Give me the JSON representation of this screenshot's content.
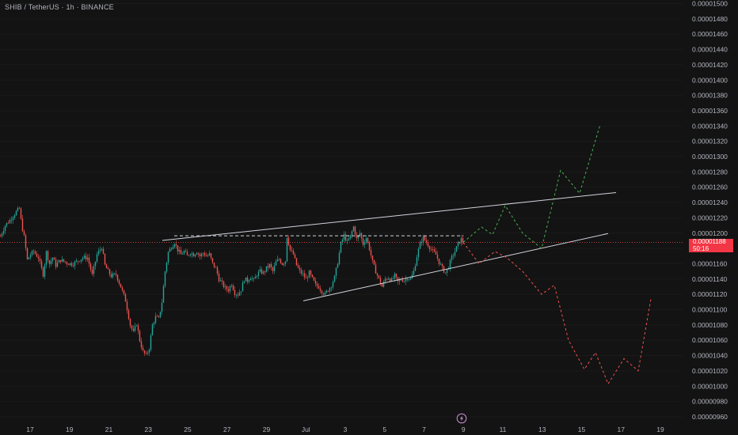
{
  "title": "SHIB / TetherUS · 1h · BINANCE",
  "last_price_tag": {
    "price": "0.00001188",
    "countdown": "50:16",
    "color": "#f23645"
  },
  "colors": {
    "up": "#26a69a",
    "down": "#ef5350",
    "background": "#131313",
    "text": "#b2b5be",
    "trendline": "#d1d4dc",
    "projection_up": "#4caf50",
    "projection_down": "#ef5350"
  },
  "icons": [
    "lightning-icon"
  ],
  "chart_data": {
    "type": "candlestick",
    "y_axis_position": "right",
    "ylim": [
      9.5e-06,
      1.5e-05
    ],
    "y_ticks": [
      "0.00001500",
      "0.00001480",
      "0.00001460",
      "0.00001440",
      "0.00001420",
      "0.00001400",
      "0.00001380",
      "0.00001360",
      "0.00001340",
      "0.00001320",
      "0.00001300",
      "0.00001280",
      "0.00001260",
      "0.00001240",
      "0.00001220",
      "0.00001200",
      "0.00001180",
      "0.00001160",
      "0.00001140",
      "0.00001120",
      "0.00001100",
      "0.00001080",
      "0.00001060",
      "0.00001040",
      "0.00001020",
      "0.00001000",
      "0.00000980",
      "0.00000960"
    ],
    "x_ticks": [
      "17",
      "19",
      "21",
      "23",
      "25",
      "27",
      "29",
      "Jul",
      "3",
      "5",
      "7",
      "9",
      "11",
      "13",
      "15",
      "17",
      "19"
    ],
    "last_price": 1.188e-05,
    "price_anchors": [
      [
        0,
        1196
      ],
      [
        6,
        1210
      ],
      [
        12,
        1217
      ],
      [
        20,
        1228
      ],
      [
        24,
        1232
      ],
      [
        27,
        1210
      ],
      [
        30,
        1195
      ],
      [
        34,
        1165
      ],
      [
        38,
        1172
      ],
      [
        42,
        1176
      ],
      [
        48,
        1168
      ],
      [
        54,
        1146
      ],
      [
        58,
        1175
      ],
      [
        62,
        1160
      ],
      [
        66,
        1168
      ],
      [
        70,
        1158
      ],
      [
        76,
        1165
      ],
      [
        82,
        1162
      ],
      [
        88,
        1160
      ],
      [
        92,
        1160
      ],
      [
        98,
        1164
      ],
      [
        104,
        1168
      ],
      [
        110,
        1168
      ],
      [
        116,
        1145
      ],
      [
        122,
        1172
      ],
      [
        128,
        1182
      ],
      [
        132,
        1158
      ],
      [
        136,
        1150
      ],
      [
        140,
        1144
      ],
      [
        146,
        1146
      ],
      [
        152,
        1130
      ],
      [
        158,
        1112
      ],
      [
        164,
        1080
      ],
      [
        168,
        1070
      ],
      [
        172,
        1082
      ],
      [
        176,
        1060
      ],
      [
        180,
        1045
      ],
      [
        184,
        1040
      ],
      [
        188,
        1050
      ],
      [
        192,
        1080
      ],
      [
        196,
        1090
      ],
      [
        200,
        1088
      ],
      [
        204,
        1110
      ],
      [
        208,
        1150
      ],
      [
        212,
        1175
      ],
      [
        216,
        1182
      ],
      [
        220,
        1188
      ],
      [
        224,
        1178
      ],
      [
        228,
        1172
      ],
      [
        232,
        1176
      ],
      [
        236,
        1170
      ],
      [
        240,
        1175
      ],
      [
        244,
        1172
      ],
      [
        248,
        1176
      ],
      [
        252,
        1170
      ],
      [
        256,
        1174
      ],
      [
        260,
        1170
      ],
      [
        264,
        1172
      ],
      [
        268,
        1160
      ],
      [
        272,
        1154
      ],
      [
        276,
        1140
      ],
      [
        280,
        1134
      ],
      [
        284,
        1128
      ],
      [
        288,
        1126
      ],
      [
        292,
        1134
      ],
      [
        296,
        1122
      ],
      [
        300,
        1120
      ],
      [
        304,
        1126
      ],
      [
        308,
        1140
      ],
      [
        312,
        1138
      ],
      [
        316,
        1143
      ],
      [
        320,
        1138
      ],
      [
        324,
        1146
      ],
      [
        328,
        1150
      ],
      [
        332,
        1148
      ],
      [
        336,
        1154
      ],
      [
        340,
        1158
      ],
      [
        344,
        1150
      ],
      [
        348,
        1162
      ],
      [
        352,
        1166
      ],
      [
        356,
        1160
      ],
      [
        360,
        1164
      ],
      [
        362,
        1196
      ],
      [
        366,
        1178
      ],
      [
        370,
        1172
      ],
      [
        374,
        1158
      ],
      [
        378,
        1150
      ],
      [
        382,
        1146
      ],
      [
        386,
        1140
      ],
      [
        390,
        1148
      ],
      [
        394,
        1140
      ],
      [
        398,
        1132
      ],
      [
        402,
        1130
      ],
      [
        406,
        1124
      ],
      [
        410,
        1120
      ],
      [
        414,
        1126
      ],
      [
        418,
        1132
      ],
      [
        422,
        1142
      ],
      [
        426,
        1162
      ],
      [
        430,
        1186
      ],
      [
        434,
        1197
      ],
      [
        438,
        1188
      ],
      [
        442,
        1196
      ],
      [
        446,
        1208
      ],
      [
        450,
        1192
      ],
      [
        454,
        1200
      ],
      [
        458,
        1186
      ],
      [
        462,
        1194
      ],
      [
        466,
        1180
      ],
      [
        470,
        1162
      ],
      [
        474,
        1150
      ],
      [
        478,
        1140
      ],
      [
        482,
        1130
      ],
      [
        486,
        1140
      ],
      [
        490,
        1142
      ],
      [
        494,
        1138
      ],
      [
        498,
        1144
      ],
      [
        502,
        1136
      ],
      [
        506,
        1140
      ],
      [
        510,
        1138
      ],
      [
        514,
        1142
      ],
      [
        518,
        1140
      ],
      [
        522,
        1150
      ],
      [
        526,
        1170
      ],
      [
        530,
        1186
      ],
      [
        534,
        1194
      ],
      [
        538,
        1188
      ],
      [
        542,
        1182
      ],
      [
        546,
        1176
      ],
      [
        550,
        1172
      ],
      [
        554,
        1162
      ],
      [
        558,
        1154
      ],
      [
        562,
        1148
      ],
      [
        566,
        1156
      ],
      [
        570,
        1168
      ],
      [
        574,
        1176
      ],
      [
        578,
        1186
      ],
      [
        582,
        1192
      ],
      [
        585,
        1188
      ]
    ],
    "trendlines": [
      {
        "name": "upper-wedge-line",
        "style": "solid",
        "from": [
          205,
          1190.5
        ],
        "to": [
          778,
          1253
        ]
      },
      {
        "name": "lower-wedge-line",
        "style": "solid",
        "from": [
          383,
          1111.5
        ],
        "to": [
          768,
          1199.5
        ]
      },
      {
        "name": "resistance-line",
        "style": "dashed",
        "from": [
          220,
          1196.5
        ],
        "to": [
          585,
          1196.5
        ]
      }
    ],
    "projection_bullish": [
      [
        585,
        1188
      ],
      [
        608,
        1208
      ],
      [
        622,
        1198
      ],
      [
        638,
        1236
      ],
      [
        660,
        1200
      ],
      [
        684,
        1180
      ],
      [
        708,
        1282
      ],
      [
        732,
        1252
      ],
      [
        758,
        1342
      ]
    ],
    "projection_bearish": [
      [
        585,
        1188
      ],
      [
        605,
        1160
      ],
      [
        625,
        1176
      ],
      [
        640,
        1168
      ],
      [
        660,
        1150
      ],
      [
        684,
        1120
      ],
      [
        700,
        1132
      ],
      [
        718,
        1060
      ],
      [
        738,
        1022
      ],
      [
        752,
        1044
      ],
      [
        768,
        1003
      ],
      [
        788,
        1036
      ],
      [
        806,
        1020
      ],
      [
        822,
        1114
      ]
    ]
  }
}
